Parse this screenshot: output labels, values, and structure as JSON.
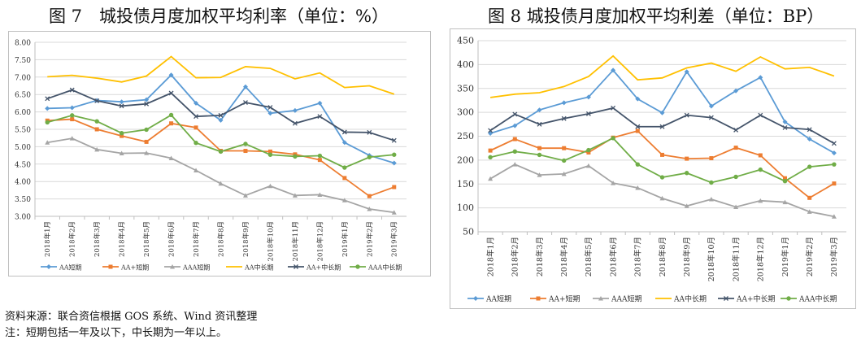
{
  "titles": {
    "fig7": "图 7　城投债月度加权平均利率（单位：%）",
    "fig8": "图 8  城投债月度加权平均利差（单位：BP）"
  },
  "notes": {
    "source": "资料来源：联合资信根据 GOS 系统、Wind 资讯整理",
    "note": "注：短期包括一年及以下，中长期为一年以上。"
  },
  "chart_data": [
    {
      "type": "line",
      "title": "城投债月度加权平均利率（单位：%）",
      "ylim": [
        3,
        8
      ],
      "yticks": [
        "3.00",
        "3.50",
        "4.00",
        "4.50",
        "5.00",
        "5.50",
        "6.00",
        "6.50",
        "7.00",
        "7.50",
        "8.00"
      ],
      "categories": [
        "2018年1月",
        "2018年2月",
        "2018年3月",
        "2018年4月",
        "2018年5月",
        "2018年6月",
        "2018年7月",
        "2018年8月",
        "2018年9月",
        "2018年10月",
        "2018年11月",
        "2018年12月",
        "2019年1月",
        "2019年2月",
        "2019年3月"
      ],
      "legend": "bottom",
      "grid": true,
      "series": [
        {
          "name": "AA短期",
          "color": "#5b9bd5",
          "marker": "diamond",
          "values": [
            6.1,
            6.12,
            6.33,
            6.29,
            6.35,
            7.06,
            6.25,
            5.76,
            6.72,
            5.96,
            6.04,
            6.25,
            5.12,
            4.75,
            4.53
          ]
        },
        {
          "name": "AA+短期",
          "color": "#ed7d31",
          "marker": "square",
          "values": [
            5.75,
            5.79,
            5.5,
            5.31,
            5.14,
            5.67,
            5.55,
            4.88,
            4.88,
            4.86,
            4.78,
            4.62,
            4.1,
            3.58,
            3.84
          ]
        },
        {
          "name": "AAA短期",
          "color": "#a5a5a5",
          "marker": "triangle",
          "values": [
            5.12,
            5.24,
            4.92,
            4.81,
            4.82,
            4.67,
            4.32,
            3.94,
            3.6,
            3.87,
            3.6,
            3.62,
            3.46,
            3.21,
            3.11
          ]
        },
        {
          "name": "AA中长期",
          "color": "#ffc000",
          "marker": "none",
          "values": [
            7.01,
            7.05,
            6.97,
            6.86,
            7.03,
            7.59,
            6.98,
            6.99,
            7.3,
            7.25,
            6.95,
            7.12,
            6.7,
            6.75,
            6.51
          ]
        },
        {
          "name": "AA+中长期",
          "color": "#44546a",
          "marker": "x",
          "values": [
            6.38,
            6.63,
            6.32,
            6.17,
            6.23,
            6.54,
            5.87,
            5.9,
            6.27,
            6.13,
            5.67,
            5.87,
            5.42,
            5.41,
            5.18
          ]
        },
        {
          "name": "AAA中长期",
          "color": "#70ad47",
          "marker": "circle",
          "values": [
            5.7,
            5.9,
            5.73,
            5.39,
            5.49,
            5.91,
            5.11,
            4.86,
            5.08,
            4.77,
            4.72,
            4.74,
            4.4,
            4.7,
            4.77
          ]
        }
      ]
    },
    {
      "type": "line",
      "title": "城投债月度加权平均利差（单位：BP）",
      "ylim": [
        50,
        450
      ],
      "yticks": [
        "50",
        "100",
        "150",
        "200",
        "250",
        "300",
        "350",
        "400",
        "450"
      ],
      "categories": [
        "2018年1月",
        "2018年2月",
        "2018年3月",
        "2018年4月",
        "2018年5月",
        "2018年6月",
        "2018年7月",
        "2018年8月",
        "2018年9月",
        "2018年10月",
        "2018年11月",
        "2018年12月",
        "2019年1月",
        "2019年2月",
        "2019年3月"
      ],
      "legend": "bottom",
      "grid": true,
      "series": [
        {
          "name": "AA短期",
          "color": "#5b9bd5",
          "marker": "diamond",
          "values": [
            256,
            272,
            305,
            320,
            332,
            388,
            328,
            299,
            385,
            313,
            345,
            373,
            280,
            244,
            215
          ]
        },
        {
          "name": "AA+短期",
          "color": "#ed7d31",
          "marker": "square",
          "values": [
            220,
            244,
            225,
            225,
            216,
            247,
            261,
            211,
            203,
            204,
            226,
            210,
            162,
            121,
            151
          ]
        },
        {
          "name": "AAA短期",
          "color": "#a5a5a5",
          "marker": "triangle",
          "values": [
            161,
            191,
            169,
            171,
            188,
            152,
            142,
            120,
            104,
            118,
            102,
            115,
            112,
            92,
            82
          ]
        },
        {
          "name": "AA中长期",
          "color": "#ffc000",
          "marker": "none",
          "values": [
            331,
            338,
            341,
            354,
            375,
            418,
            368,
            372,
            393,
            403,
            386,
            416,
            391,
            394,
            376
          ]
        },
        {
          "name": "AA+中长期",
          "color": "#44546a",
          "marker": "x",
          "values": [
            262,
            296,
            275,
            287,
            297,
            309,
            270,
            270,
            294,
            289,
            263,
            294,
            268,
            264,
            235
          ]
        },
        {
          "name": "AAA中长期",
          "color": "#70ad47",
          "marker": "circle",
          "values": [
            206,
            218,
            211,
            199,
            221,
            246,
            191,
            164,
            173,
            153,
            165,
            180,
            156,
            186,
            191
          ]
        }
      ]
    }
  ]
}
